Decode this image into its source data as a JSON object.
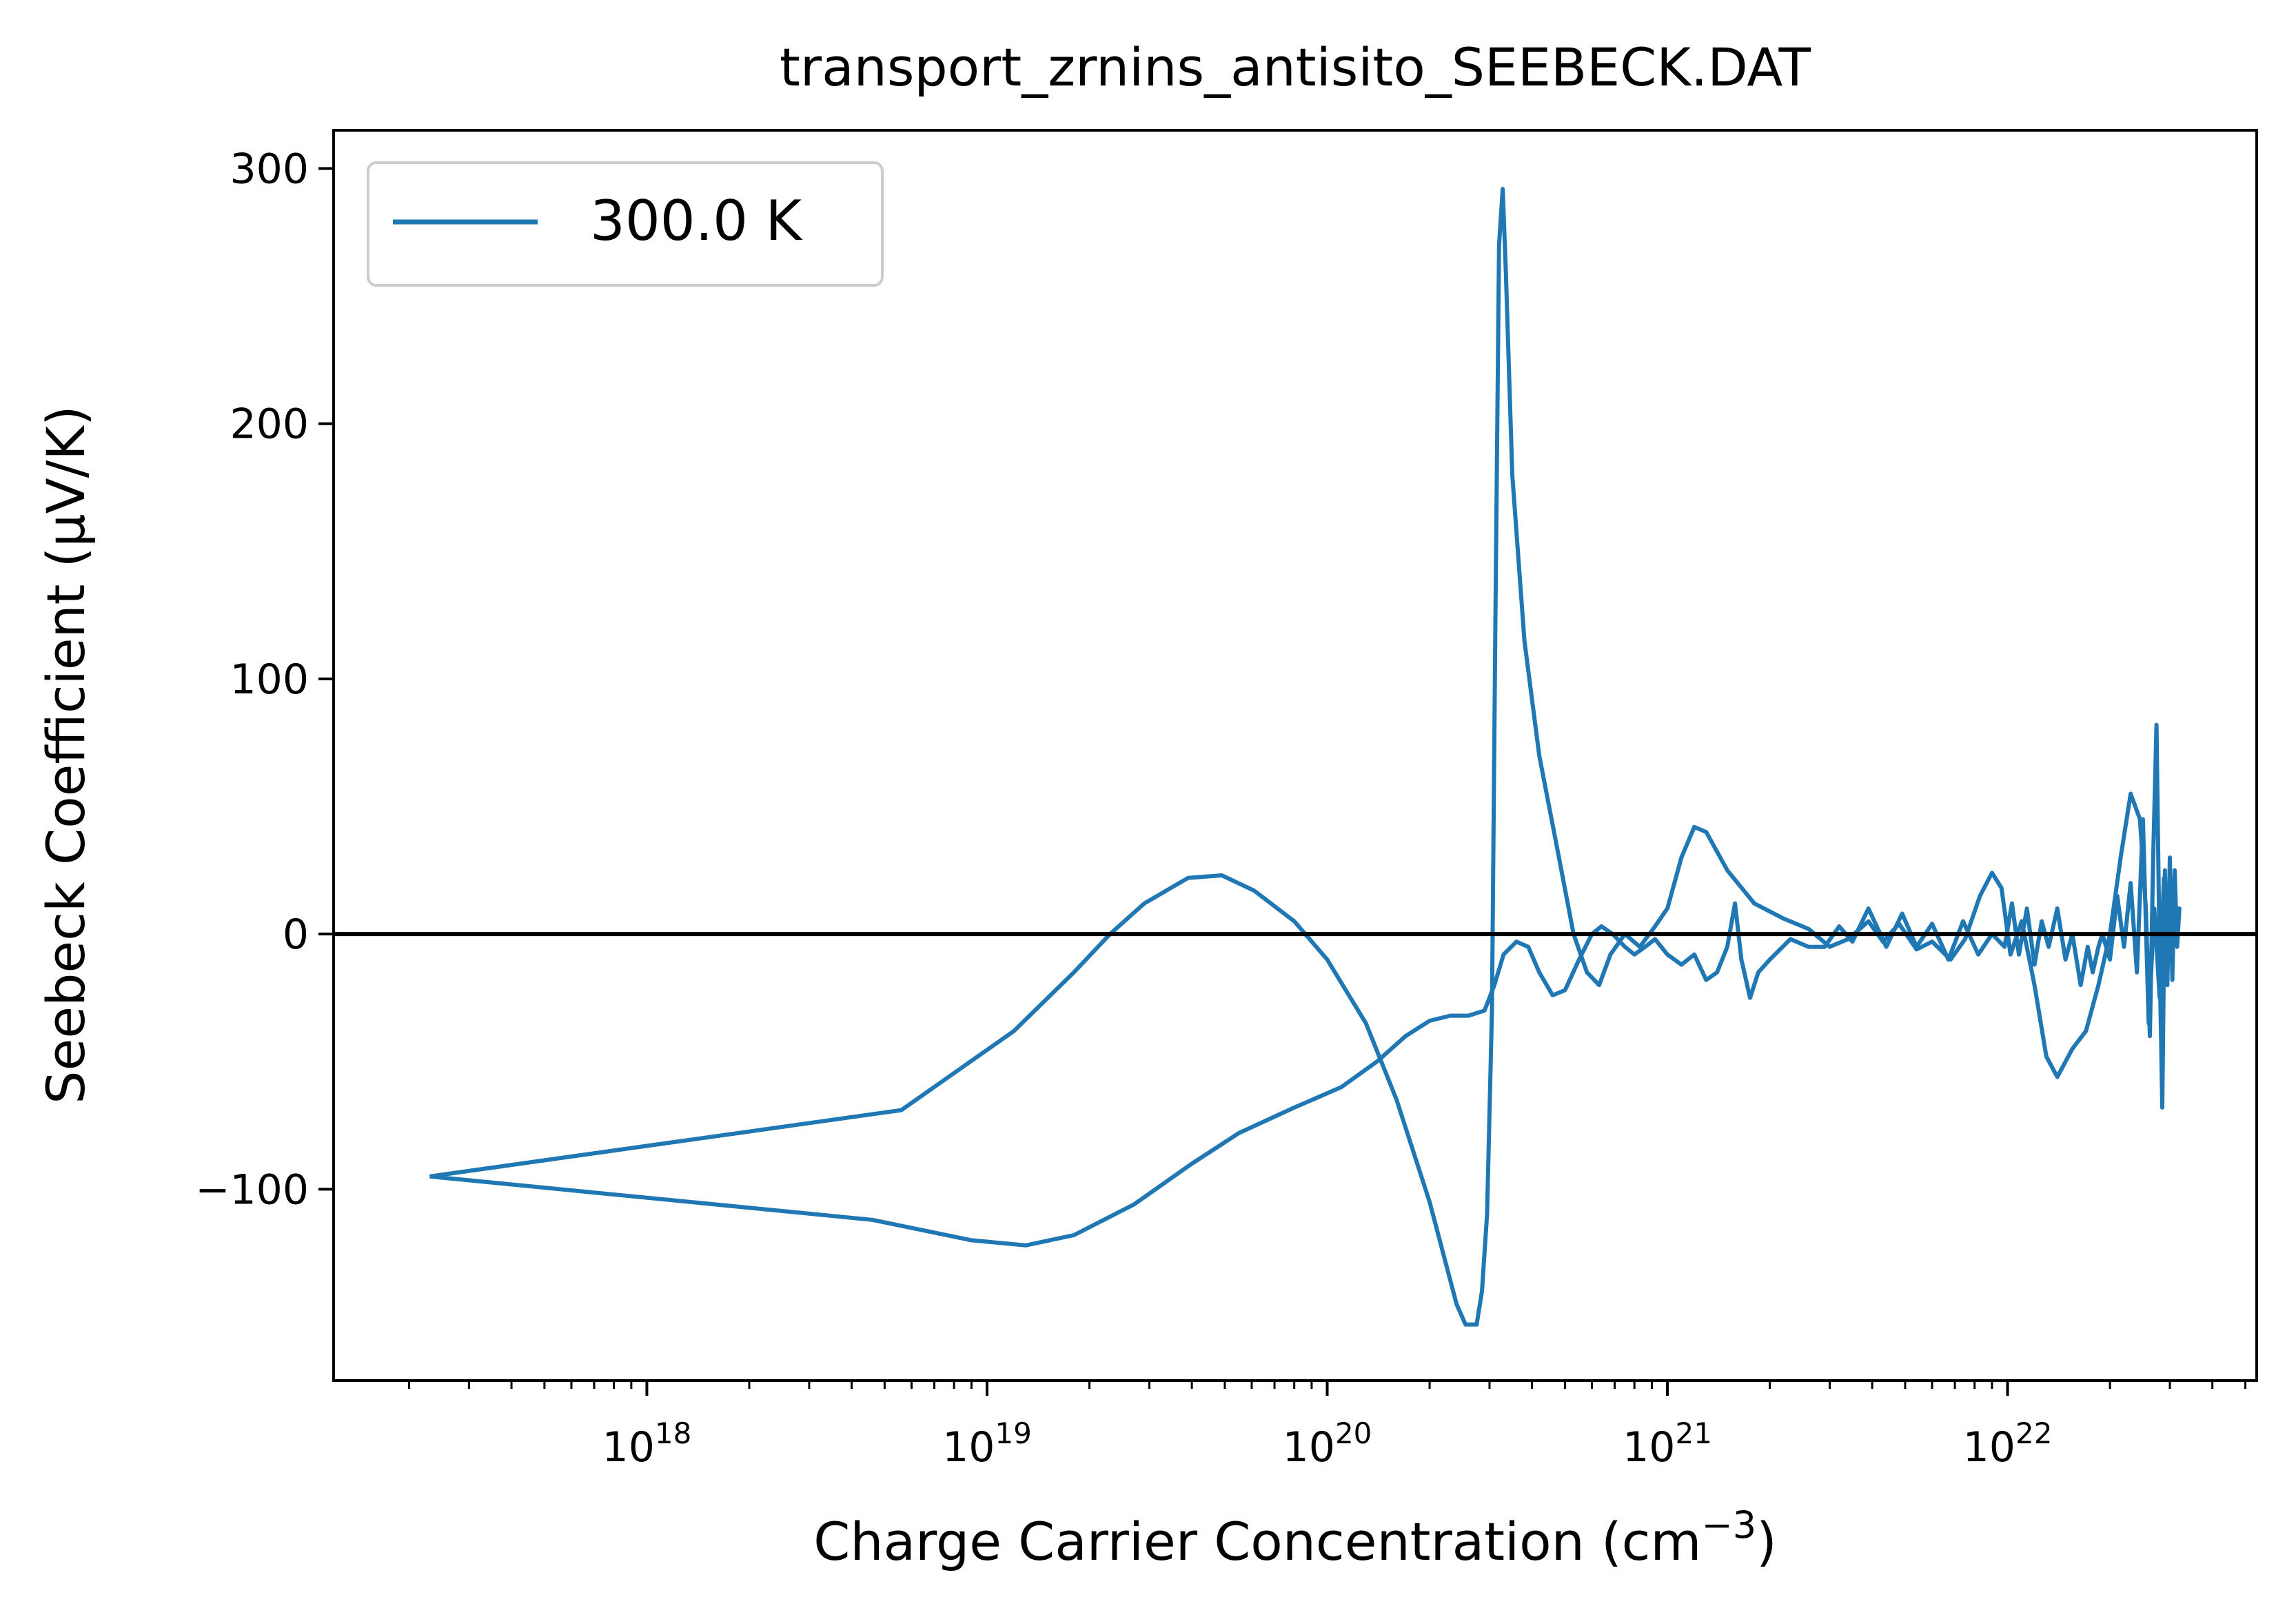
{
  "chart_data": {
    "type": "line",
    "title": "transport_zrnins_antisito_SEEBECK.DAT",
    "xlabel": "Charge Carrier Concentration (cm",
    "xlabel_sup": "−3",
    "xlabel_tail": ")",
    "ylabel": "Seebeck Coefficient (μV/K)",
    "x_scale": "log",
    "xlim": [
      1.2e+17,
      5.4e+22
    ],
    "ylim": [
      -175,
      315
    ],
    "x_ticks": [
      {
        "value": 1e+18,
        "base": "10",
        "exp": "18"
      },
      {
        "value": 1e+19,
        "base": "10",
        "exp": "19"
      },
      {
        "value": 1e+20,
        "base": "10",
        "exp": "20"
      },
      {
        "value": 1e+21,
        "base": "10",
        "exp": "21"
      },
      {
        "value": 1e+22,
        "base": "10",
        "exp": "22"
      }
    ],
    "y_ticks": [
      {
        "value": -100,
        "label": "−100"
      },
      {
        "value": 0,
        "label": "0"
      },
      {
        "value": 100,
        "label": "100"
      },
      {
        "value": 200,
        "label": "200"
      },
      {
        "value": 300,
        "label": "300"
      }
    ],
    "reference_line": {
      "y": 0,
      "color": "#000000"
    },
    "grid": false,
    "legend_position": "top-left",
    "series": [
      {
        "name": "300.0 K",
        "color": "#1f77b4",
        "points": [
          [
            2.3e+17,
            -95
          ],
          [
            5.6e+18,
            -69
          ],
          [
            1.2e+19,
            -38
          ],
          [
            1.8e+19,
            -15
          ],
          [
            2.3e+19,
            0
          ],
          [
            2.9e+19,
            12
          ],
          [
            3.9e+19,
            22
          ],
          [
            4.9e+19,
            23
          ],
          [
            6.1e+19,
            17
          ],
          [
            8e+19,
            5
          ],
          [
            1e+20,
            -10
          ],
          [
            1.3e+20,
            -35
          ],
          [
            1.6e+20,
            -65
          ],
          [
            2e+20,
            -105
          ],
          [
            2.4e+20,
            -145
          ],
          [
            2.55e+20,
            -153
          ],
          [
            2.75e+20,
            -153
          ],
          [
            2.85e+20,
            -140
          ],
          [
            2.95e+20,
            -110
          ],
          [
            3.05e+20,
            -30
          ],
          [
            3.12e+20,
            120
          ],
          [
            3.2e+20,
            270
          ],
          [
            3.28e+20,
            292
          ],
          [
            3.35e+20,
            260
          ],
          [
            3.5e+20,
            180
          ],
          [
            3.8e+20,
            115
          ],
          [
            4.2e+20,
            70
          ],
          [
            4.8e+20,
            30
          ],
          [
            5.3e+20,
            0
          ],
          [
            5.8e+20,
            -15
          ],
          [
            6.3e+20,
            -20
          ],
          [
            6.8e+20,
            -8
          ],
          [
            7.5e+20,
            0
          ],
          [
            8.3e+20,
            -5
          ],
          [
            9.2e+20,
            3
          ],
          [
            1e+21,
            10
          ],
          [
            1.1e+21,
            30
          ],
          [
            1.2e+21,
            42
          ],
          [
            1.3e+21,
            40
          ],
          [
            1.5e+21,
            25
          ],
          [
            1.8e+21,
            12
          ],
          [
            2.2e+21,
            6
          ],
          [
            2.6e+21,
            2
          ],
          [
            3e+21,
            -5
          ],
          [
            3.4e+21,
            -2
          ],
          [
            3.9e+21,
            5
          ],
          [
            4.3e+21,
            -3
          ],
          [
            4.8e+21,
            4
          ],
          [
            5.4e+21,
            -6
          ],
          [
            6e+21,
            -3
          ],
          [
            6.8e+21,
            -10
          ],
          [
            7.5e+21,
            -2
          ],
          [
            8.3e+21,
            15
          ],
          [
            9e+21,
            24
          ],
          [
            9.6e+21,
            18
          ],
          [
            1.02e+22,
            -8
          ],
          [
            1.1e+22,
            5
          ],
          [
            1.2e+22,
            -20
          ],
          [
            1.3e+22,
            -48
          ],
          [
            1.4e+22,
            -56
          ],
          [
            1.55e+22,
            -45
          ],
          [
            1.7e+22,
            -38
          ],
          [
            1.85e+22,
            -20
          ],
          [
            2e+22,
            0
          ],
          [
            2.15e+22,
            30
          ],
          [
            2.3e+22,
            55
          ],
          [
            2.45e+22,
            45
          ],
          [
            2.55e+22,
            10
          ],
          [
            2.62e+22,
            -40
          ],
          [
            2.68e+22,
            30
          ],
          [
            2.74e+22,
            82
          ],
          [
            2.8e+22,
            -10
          ],
          [
            2.85e+22,
            -68
          ],
          [
            2.9e+22,
            25
          ],
          [
            2.95e+22,
            -20
          ],
          [
            3e+22,
            30
          ],
          [
            3.05e+22,
            -18
          ],
          [
            3.1e+22,
            25
          ],
          [
            3.15e+22,
            -5
          ],
          [
            3.2e+22,
            10
          ],
          [
            3.1e+22,
            0
          ],
          [
            3e+22,
            15
          ],
          [
            2.95e+22,
            -5
          ],
          [
            2.88e+22,
            22
          ],
          [
            2.8e+22,
            -25
          ],
          [
            2.7e+22,
            10
          ],
          [
            2.6e+22,
            -35
          ],
          [
            2.5e+22,
            45
          ],
          [
            2.4e+22,
            -15
          ],
          [
            2.3e+22,
            20
          ],
          [
            2.2e+22,
            -5
          ],
          [
            2.1e+22,
            15
          ],
          [
            2e+22,
            -10
          ],
          [
            1.9e+22,
            0
          ],
          [
            1.85e+22,
            -5
          ],
          [
            1.78e+22,
            -15
          ],
          [
            1.72e+22,
            -5
          ],
          [
            1.64e+22,
            -20
          ],
          [
            1.55e+22,
            0
          ],
          [
            1.48e+22,
            -10
          ],
          [
            1.4e+22,
            10
          ],
          [
            1.32e+22,
            -5
          ],
          [
            1.26e+22,
            5
          ],
          [
            1.2e+22,
            -12
          ],
          [
            1.14e+22,
            10
          ],
          [
            1.08e+22,
            -8
          ],
          [
            1.03e+22,
            12
          ],
          [
            9.8e+21,
            -5
          ],
          [
            9e+21,
            0
          ],
          [
            8.2e+21,
            -8
          ],
          [
            7.4e+21,
            5
          ],
          [
            6.7e+21,
            -10
          ],
          [
            6e+21,
            4
          ],
          [
            5.4e+21,
            -5
          ],
          [
            4.9e+21,
            8
          ],
          [
            4.4e+21,
            -5
          ],
          [
            3.9e+21,
            10
          ],
          [
            3.5e+21,
            -3
          ],
          [
            3.2e+21,
            3
          ],
          [
            2.9e+21,
            -5
          ],
          [
            2.6e+21,
            -5
          ],
          [
            2.3e+21,
            -2
          ],
          [
            2e+21,
            -10
          ],
          [
            1.85e+21,
            -15
          ],
          [
            1.75e+21,
            -25
          ],
          [
            1.65e+21,
            -10
          ],
          [
            1.58e+21,
            12
          ],
          [
            1.5e+21,
            -5
          ],
          [
            1.4e+21,
            -15
          ],
          [
            1.3e+21,
            -18
          ],
          [
            1.2e+21,
            -8
          ],
          [
            1.1e+21,
            -12
          ],
          [
            1e+21,
            -8
          ],
          [
            9.2e+20,
            -2
          ],
          [
            8.6e+20,
            -5
          ],
          [
            8e+20,
            -8
          ],
          [
            7.5e+20,
            -5
          ],
          [
            6.9e+20,
            0
          ],
          [
            6.4e+20,
            3
          ],
          [
            6e+20,
            0
          ],
          [
            5.5e+20,
            -10
          ],
          [
            5e+20,
            -22
          ],
          [
            4.6e+20,
            -24
          ],
          [
            4.2e+20,
            -15
          ],
          [
            3.9e+20,
            -5
          ],
          [
            3.6e+20,
            -3
          ],
          [
            3.3e+20,
            -8
          ],
          [
            3.1e+20,
            -20
          ],
          [
            2.9e+20,
            -30
          ],
          [
            2.6e+20,
            -32
          ],
          [
            2.3e+20,
            -32
          ],
          [
            2e+20,
            -34
          ],
          [
            1.7e+20,
            -40
          ],
          [
            1.4e+20,
            -50
          ],
          [
            1.1e+20,
            -60
          ],
          [
            8e+19,
            -68
          ],
          [
            5.5e+19,
            -78
          ],
          [
            4e+19,
            -90
          ],
          [
            2.7e+19,
            -106
          ],
          [
            1.8e+19,
            -118
          ],
          [
            1.3e+19,
            -122
          ],
          [
            9e+18,
            -120
          ],
          [
            4.6e+18,
            -112
          ],
          [
            2.3e+17,
            -95
          ]
        ]
      }
    ]
  }
}
